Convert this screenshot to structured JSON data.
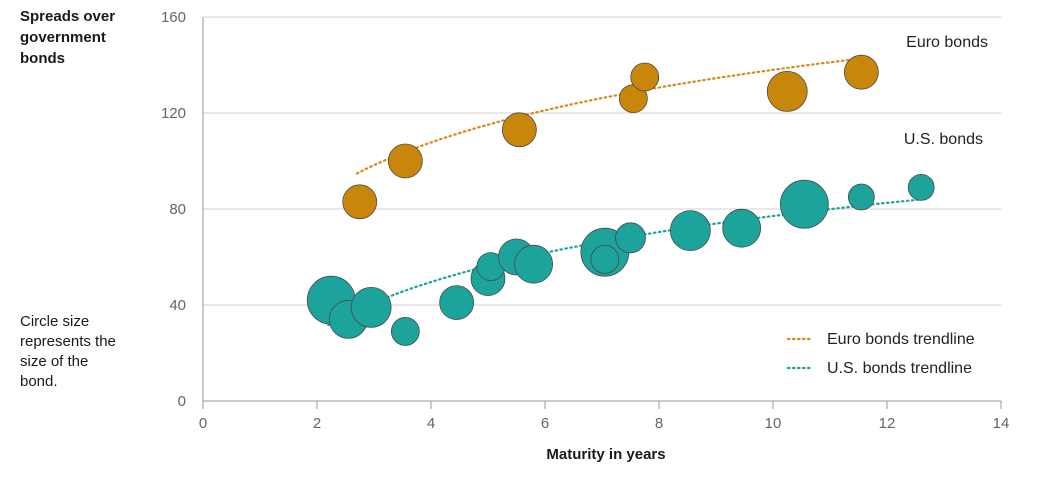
{
  "chart_data": {
    "type": "scatter",
    "ylabel": "Spreads over government bonds",
    "xlabel": "Maturity in years",
    "note": "Circle size represents the size of the bond.",
    "xlim": [
      0,
      14
    ],
    "ylim": [
      0,
      160
    ],
    "x_ticks": [
      "0",
      "2",
      "4",
      "6",
      "8",
      "10",
      "12",
      "14"
    ],
    "y_ticks": [
      "0",
      "40",
      "80",
      "120",
      "160"
    ],
    "grid": "horizontal",
    "legend_position": "bottom-right",
    "series": [
      {
        "name": "Euro bonds",
        "color": "#C8860B",
        "points": [
          {
            "x": 2.75,
            "y": 83,
            "size": 17
          },
          {
            "x": 3.55,
            "y": 100,
            "size": 17
          },
          {
            "x": 5.55,
            "y": 113,
            "size": 17
          },
          {
            "x": 7.55,
            "y": 126,
            "size": 14
          },
          {
            "x": 7.75,
            "y": 135,
            "size": 14
          },
          {
            "x": 10.25,
            "y": 129,
            "size": 20
          },
          {
            "x": 11.55,
            "y": 137,
            "size": 17
          }
        ]
      },
      {
        "name": "U.S. bonds",
        "color": "#1BA39C",
        "points": [
          {
            "x": 2.25,
            "y": 42,
            "size": 24
          },
          {
            "x": 2.55,
            "y": 34,
            "size": 19
          },
          {
            "x": 2.95,
            "y": 39,
            "size": 20
          },
          {
            "x": 3.55,
            "y": 29,
            "size": 14
          },
          {
            "x": 4.45,
            "y": 41,
            "size": 17
          },
          {
            "x": 5.0,
            "y": 51,
            "size": 17
          },
          {
            "x": 5.05,
            "y": 56,
            "size": 14
          },
          {
            "x": 5.5,
            "y": 60,
            "size": 18
          },
          {
            "x": 5.8,
            "y": 57,
            "size": 19
          },
          {
            "x": 7.05,
            "y": 62,
            "size": 24
          },
          {
            "x": 7.05,
            "y": 59,
            "size": 14
          },
          {
            "x": 7.5,
            "y": 68,
            "size": 15
          },
          {
            "x": 8.55,
            "y": 71,
            "size": 20
          },
          {
            "x": 9.45,
            "y": 72,
            "size": 19
          },
          {
            "x": 10.55,
            "y": 82,
            "size": 24
          },
          {
            "x": 11.55,
            "y": 85,
            "size": 13
          },
          {
            "x": 12.6,
            "y": 89,
            "size": 13
          }
        ]
      }
    ],
    "trendlines": [
      {
        "name": "Euro bonds trendline",
        "color": "#D8871A",
        "x_start": 2.7,
        "x_end": 11.55,
        "a": 62,
        "b": 33
      },
      {
        "name": "U.S. bonds trendline",
        "color": "#1BA39C",
        "x_start": 2.2,
        "x_end": 12.6,
        "a": 8,
        "b": 30
      }
    ]
  }
}
